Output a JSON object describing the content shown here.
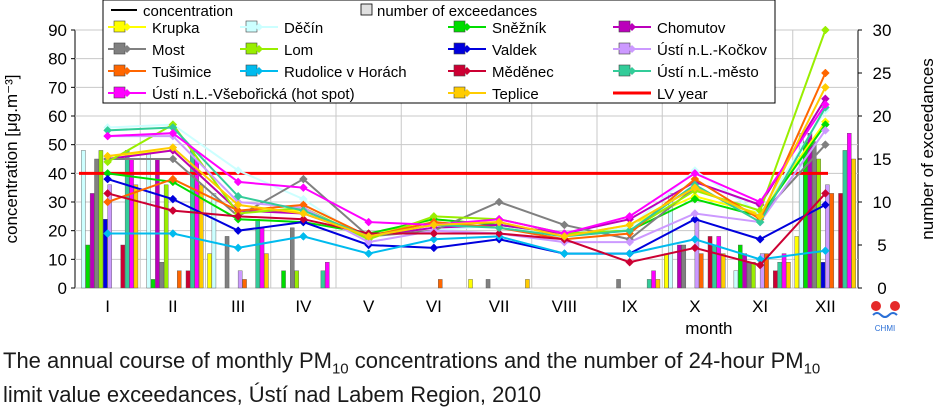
{
  "caption": {
    "part1": "The annual course of monthly PM",
    "sub1": "10",
    "part2": " concentrations and the number of 24-hour PM",
    "sub2": "10",
    "part3": "limit value exceedances, Ústí nad Labem Region, 2010"
  },
  "logo": {
    "text": "CHMI"
  },
  "chart_data": {
    "type": "bar+line",
    "categories": [
      "I",
      "II",
      "III",
      "IV",
      "V",
      "VI",
      "VII",
      "VIII",
      "IX",
      "X",
      "XI",
      "XII"
    ],
    "xlabel": "month",
    "ylabel_left": "concentration [μg.m⁻³]",
    "ylabel_right": "number of exceedances",
    "ylim_left": [
      0,
      90
    ],
    "yticks_left": [
      0,
      10,
      20,
      30,
      40,
      50,
      60,
      70,
      80,
      90
    ],
    "ylim_right": [
      0,
      30
    ],
    "yticks_right": [
      0,
      5,
      10,
      15,
      20,
      25,
      30
    ],
    "grid": true,
    "legend": {
      "placement": "top",
      "concentration_label": "concentration",
      "exceedance_label": "number of exceedances"
    },
    "limit_line": {
      "name": "LV year",
      "value": 40,
      "color": "#ff0000"
    },
    "series": [
      {
        "name": "Krupka",
        "color": "#ffff00",
        "concentration": [
          46,
          48,
          27,
          27,
          18,
          24,
          22,
          18,
          22,
          32,
          26,
          58
        ],
        "exceedances": [
          0,
          0,
          4,
          0,
          0,
          0,
          1,
          0,
          0,
          4,
          0,
          6
        ]
      },
      {
        "name": "Děčín",
        "color": "#ccffff",
        "concentration": [
          56,
          57,
          41,
          31,
          16,
          20,
          22,
          18,
          21,
          41,
          26,
          62
        ],
        "exceedances": [
          16,
          16,
          11,
          0,
          0,
          0,
          0,
          0,
          0,
          11,
          2,
          18
        ]
      },
      {
        "name": "Sněžník",
        "color": "#00dd00",
        "concentration": [
          40,
          37,
          24,
          23,
          19,
          24,
          22,
          19,
          20,
          31,
          25,
          57
        ],
        "exceedances": [
          5,
          1,
          0,
          2,
          0,
          0,
          0,
          0,
          0,
          0,
          5,
          17
        ]
      },
      {
        "name": "Chomutov",
        "color": "#bb00bb",
        "concentration": [
          45,
          48,
          27,
          26,
          18,
          21,
          22,
          19,
          24,
          37,
          29,
          66
        ],
        "exceedances": [
          11,
          15,
          0,
          0,
          0,
          0,
          0,
          0,
          0,
          5,
          4,
          18
        ]
      },
      {
        "name": "Most",
        "color": "#808080",
        "concentration": [
          45,
          45,
          25,
          38,
          18,
          20,
          30,
          22,
          17,
          35,
          25,
          50
        ],
        "exceedances": [
          15,
          3,
          6,
          7,
          0,
          0,
          1,
          0,
          1,
          5,
          3,
          17
        ]
      },
      {
        "name": "Lom",
        "color": "#99ee00",
        "concentration": [
          44,
          57,
          26,
          28,
          17,
          25,
          24,
          19,
          20,
          34,
          27,
          90
        ],
        "exceedances": [
          16,
          12,
          0,
          2,
          0,
          0,
          0,
          0,
          0,
          0,
          3,
          15
        ]
      },
      {
        "name": "Valdek",
        "color": "#0000dd",
        "concentration": [
          38,
          31,
          20,
          23,
          15,
          14,
          17,
          12,
          12,
          24,
          17,
          29
        ],
        "exceedances": [
          8,
          0,
          0,
          0,
          0,
          0,
          0,
          0,
          0,
          0,
          0,
          3
        ]
      },
      {
        "name": "Ústí n.L.-Kočkov",
        "color": "#cc99ff",
        "concentration": [
          53,
          53,
          30,
          28,
          16,
          20,
          19,
          16,
          16,
          26,
          23,
          55
        ],
        "exceedances": [
          12,
          0,
          2,
          0,
          0,
          0,
          0,
          0,
          0,
          8,
          4,
          12
        ]
      },
      {
        "name": "Tušimice",
        "color": "#ff6600",
        "concentration": [
          30,
          38,
          27,
          29,
          18,
          23,
          21,
          17,
          19,
          38,
          24,
          75
        ],
        "exceedances": [
          0,
          2,
          1,
          0,
          0,
          1,
          0,
          0,
          0,
          4,
          4,
          11
        ]
      },
      {
        "name": "Rudolice v Horách",
        "color": "#00bbee",
        "concentration": [
          19,
          19,
          14,
          18,
          12,
          17,
          18,
          12,
          12,
          17,
          10,
          13
        ],
        "exceedances": [
          0,
          0,
          0,
          0,
          0,
          0,
          0,
          0,
          0,
          0,
          0,
          0
        ]
      },
      {
        "name": "Měděnec",
        "color": "#cc0033",
        "concentration": [
          33,
          27,
          25,
          24,
          19,
          19,
          19,
          17,
          9,
          14,
          8,
          33
        ],
        "exceedances": [
          5,
          2,
          0,
          0,
          0,
          0,
          0,
          0,
          0,
          6,
          2,
          11
        ]
      },
      {
        "name": "Ústí n.L.-město",
        "color": "#33cc99",
        "concentration": [
          55,
          56,
          32,
          27,
          18,
          22,
          21,
          18,
          20,
          36,
          23,
          63
        ],
        "exceedances": [
          16,
          16,
          8,
          2,
          0,
          0,
          0,
          0,
          1,
          5,
          3,
          16
        ]
      },
      {
        "name": "Ústí n.L.-Všebořická (hot spot)",
        "color": "#ff00ff",
        "concentration": [
          53,
          54,
          37,
          35,
          23,
          22,
          24,
          19,
          25,
          40,
          30,
          64
        ],
        "exceedances": [
          15,
          15,
          7,
          3,
          0,
          0,
          0,
          0,
          2,
          6,
          4,
          18
        ]
      },
      {
        "name": "Teplice",
        "color": "#ffcc00",
        "concentration": [
          46,
          49,
          29,
          26,
          18,
          22,
          23,
          18,
          22,
          35,
          25,
          70
        ],
        "exceedances": [
          12,
          12,
          4,
          0,
          0,
          0,
          1,
          0,
          1,
          4,
          3,
          15
        ]
      }
    ]
  }
}
